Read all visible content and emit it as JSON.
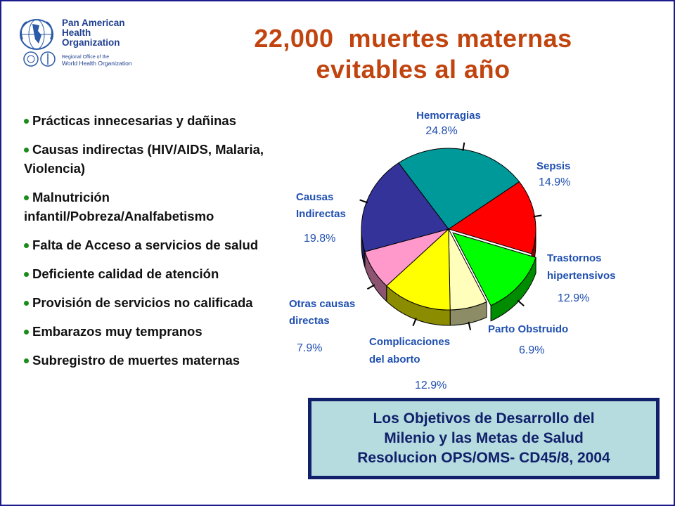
{
  "logo": {
    "line1": "Pan American",
    "line2": "Health",
    "line3": "Organization",
    "sub1": "Regional Office of the",
    "sub2": "World Health Organization"
  },
  "title": {
    "line1": "22,000  muertes maternas",
    "line2": "evitables al año"
  },
  "bullets": [
    "Prácticas innecesarias y dañinas",
    "Causas indirectas (HIV/AIDS, Malaria, Violencia)",
    " Malnutrición infantil/Pobreza/Analfabetismo",
    "Falta de Acceso a servicios de salud",
    "Deficiente calidad de atención",
    "Provisión de servicios no calificada",
    "Embarazos muy tempranos",
    "Subregistro de muertes maternas"
  ],
  "chart_data": {
    "type": "pie",
    "slices": [
      {
        "label": "Hemorragias",
        "value_label": "24.8%",
        "value": 24.8,
        "color": "#009999"
      },
      {
        "label": "Sepsis",
        "value_label": "14.9%",
        "value": 14.9,
        "color": "#ff0000"
      },
      {
        "label": "Trastornos hipertensivos",
        "value_label": "12.9%",
        "value": 12.9,
        "color": "#00ff00"
      },
      {
        "label": "Parto Obstruido",
        "value_label": "6.9%",
        "value": 6.9,
        "color": "#ffffbb"
      },
      {
        "label": "Complicaciones del aborto",
        "value_label": "12.9%",
        "value": 12.9,
        "color": "#ffff00"
      },
      {
        "label": "Otras causas directas",
        "value_label": "7.9%",
        "value": 7.9,
        "color": "#ff99cc"
      },
      {
        "label": "Causas Indirectas",
        "value_label": "19.8%",
        "value": 19.8,
        "color": "#333399"
      }
    ],
    "exploded_slice": "Trastornos hipertensivos"
  },
  "callout": {
    "line1": "Los Objetivos de Desarrollo del",
    "line2": "Milenio y las Metas de Salud",
    "line3": "Resolucion OPS/OMS- CD45/8, 2004"
  }
}
